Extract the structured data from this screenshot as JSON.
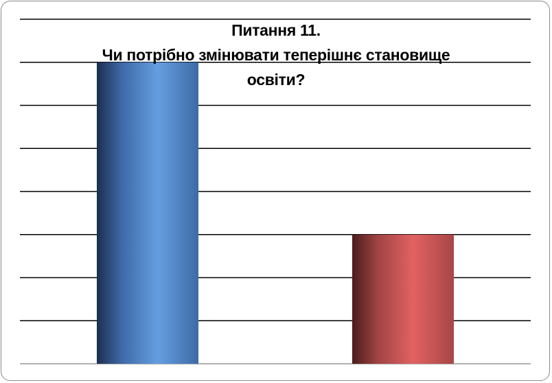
{
  "chart_data": {
    "type": "bar",
    "title_lines": [
      "Питання 11.",
      "Чи потрібно змінювати теперішнє становище",
      "освіти?"
    ],
    "categories": [
      "",
      ""
    ],
    "values": [
      7,
      3
    ],
    "ylim": [
      0,
      8
    ],
    "grid": true,
    "gridline_count": 9,
    "legend": "none",
    "colors": [
      "#5b8fd4",
      "#d45a5a"
    ]
  }
}
